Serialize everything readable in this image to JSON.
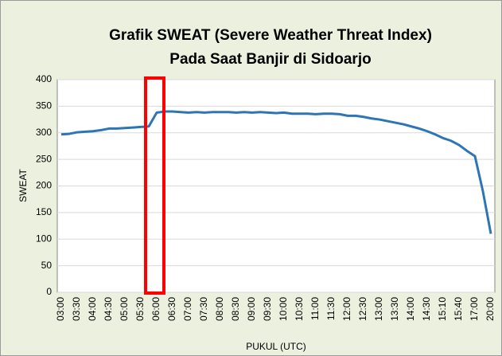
{
  "chart_data": {
    "type": "line",
    "title": [
      "Grafik SWEAT (Severe Weather Threat Index)",
      "Pada Saat Banjir di Sidoarjo"
    ],
    "x_label": "PUKUL (UTC)",
    "y_label": "SWEAT",
    "categories": [
      "03:00",
      null,
      "03:30",
      null,
      "04:00",
      null,
      "04:30",
      null,
      "05:00",
      null,
      "05:30",
      null,
      "06:00",
      null,
      "06:30",
      null,
      "07:00",
      null,
      "07:30",
      null,
      "08:00",
      null,
      "08:30",
      null,
      "09:00",
      null,
      "09:30",
      null,
      "10:00",
      null,
      "10:30",
      null,
      "11:00",
      null,
      "11:30",
      null,
      "12:00",
      null,
      "12:30",
      null,
      "13:00",
      null,
      "13:30",
      null,
      "14:00",
      null,
      "14:30",
      null,
      "15:10",
      null,
      "15:40",
      null,
      "17:00",
      null,
      "20:00"
    ],
    "series": [
      {
        "name": "SWEAT",
        "color": "#2e75b6",
        "values": [
          297,
          298,
          301,
          302,
          303,
          305,
          308,
          308,
          309,
          310,
          311,
          312,
          338,
          340,
          340,
          339,
          338,
          339,
          338,
          339,
          339,
          339,
          338,
          339,
          338,
          339,
          338,
          337,
          338,
          336,
          336,
          336,
          335,
          336,
          336,
          335,
          332,
          332,
          330,
          327,
          325,
          322,
          319,
          316,
          312,
          308,
          303,
          297,
          290,
          285,
          277,
          266,
          256,
          190,
          110
        ]
      }
    ],
    "ylim": [
      0,
      400
    ],
    "yticks": [
      0,
      50,
      100,
      150,
      200,
      250,
      300,
      350,
      400
    ],
    "grid": true
  }
}
